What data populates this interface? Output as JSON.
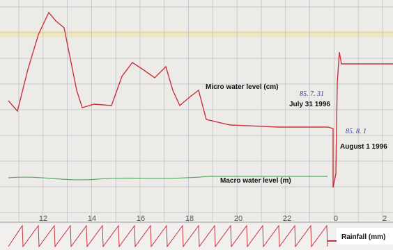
{
  "annotations": {
    "micro": "Micro water level (cm)",
    "macro": "Macro water level (m)",
    "rainfall": "Rainfall (mm)",
    "date1": "July 31 1996",
    "date2": "August 1 1996",
    "stamp1": "85. 7. 31",
    "stamp2": "85. 8. 1"
  },
  "hour_labels": [
    "12",
    "14",
    "16",
    "18",
    "20",
    "22",
    "0",
    "2"
  ]
}
